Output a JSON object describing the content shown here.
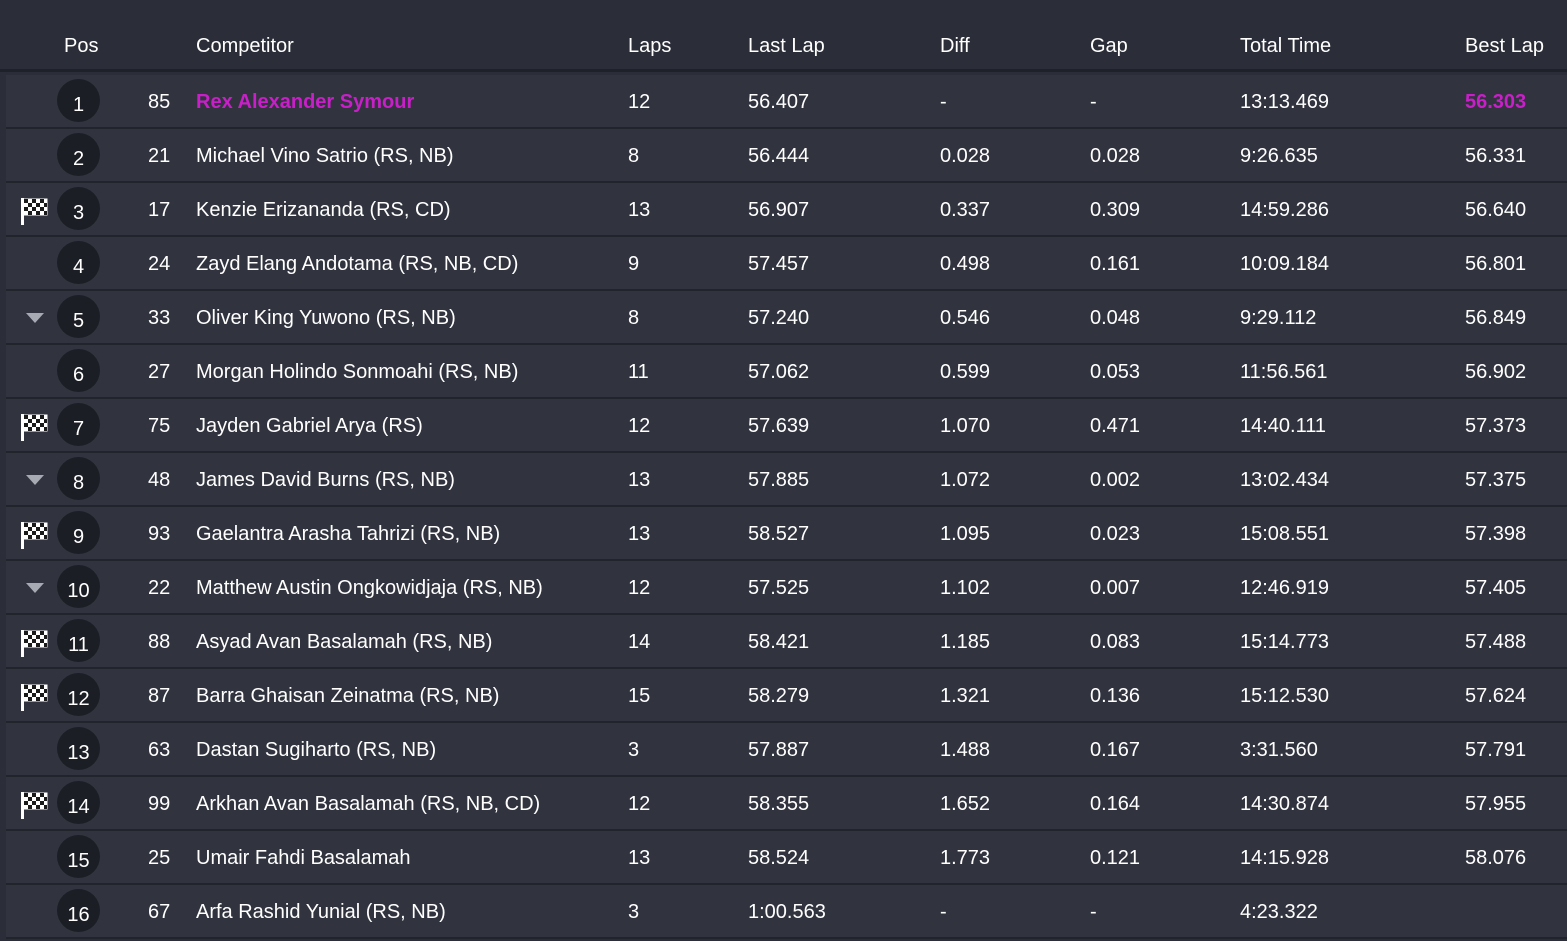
{
  "colors": {
    "background": "#2b2e38",
    "row": "#31343f",
    "highlight": "#c81fc8",
    "badge": "#1c1e25"
  },
  "header": {
    "pos": "Pos",
    "competitor": "Competitor",
    "laps": "Laps",
    "last_lap": "Last Lap",
    "diff": "Diff",
    "gap": "Gap",
    "total_time": "Total Time",
    "best_lap": "Best Lap"
  },
  "rows": [
    {
      "pos": "1",
      "num": "85",
      "name": "Rex Alexander Symour",
      "laps": "12",
      "last": "56.407",
      "diff": "-",
      "gap": "-",
      "total": "13:13.469",
      "best": "56.303",
      "marker": "",
      "highlight": true
    },
    {
      "pos": "2",
      "num": "21",
      "name": "Michael Vino Satrio (RS, NB)",
      "laps": "8",
      "last": "56.444",
      "diff": "0.028",
      "gap": "0.028",
      "total": "9:26.635",
      "best": "56.331",
      "marker": "",
      "highlight": false
    },
    {
      "pos": "3",
      "num": "17",
      "name": "Kenzie Erizananda (RS, CD)",
      "laps": "13",
      "last": "56.907",
      "diff": "0.337",
      "gap": "0.309",
      "total": "14:59.286",
      "best": "56.640",
      "marker": "checkered-flag-icon",
      "highlight": false
    },
    {
      "pos": "4",
      "num": "24",
      "name": "Zayd Elang Andotama (RS, NB, CD)",
      "laps": "9",
      "last": "57.457",
      "diff": "0.498",
      "gap": "0.161",
      "total": "10:09.184",
      "best": "56.801",
      "marker": "",
      "highlight": false
    },
    {
      "pos": "5",
      "num": "33",
      "name": "Oliver King Yuwono (RS, NB)",
      "laps": "8",
      "last": "57.240",
      "diff": "0.546",
      "gap": "0.048",
      "total": "9:29.112",
      "best": "56.849",
      "marker": "position-down-icon",
      "highlight": false
    },
    {
      "pos": "6",
      "num": "27",
      "name": "Morgan Holindo Sonmoahi (RS, NB)",
      "laps": "11",
      "last": "57.062",
      "diff": "0.599",
      "gap": "0.053",
      "total": "11:56.561",
      "best": "56.902",
      "marker": "",
      "highlight": false
    },
    {
      "pos": "7",
      "num": "75",
      "name": "Jayden Gabriel Arya (RS)",
      "laps": "12",
      "last": "57.639",
      "diff": "1.070",
      "gap": "0.471",
      "total": "14:40.111",
      "best": "57.373",
      "marker": "checkered-flag-icon",
      "highlight": false
    },
    {
      "pos": "8",
      "num": "48",
      "name": "James David Burns (RS, NB)",
      "laps": "13",
      "last": "57.885",
      "diff": "1.072",
      "gap": "0.002",
      "total": "13:02.434",
      "best": "57.375",
      "marker": "position-down-icon",
      "highlight": false
    },
    {
      "pos": "9",
      "num": "93",
      "name": "Gaelantra Arasha Tahrizi (RS, NB)",
      "laps": "13",
      "last": "58.527",
      "diff": "1.095",
      "gap": "0.023",
      "total": "15:08.551",
      "best": "57.398",
      "marker": "checkered-flag-icon",
      "highlight": false
    },
    {
      "pos": "10",
      "num": "22",
      "name": "Matthew Austin Ongkowidjaja (RS, NB)",
      "laps": "12",
      "last": "57.525",
      "diff": "1.102",
      "gap": "0.007",
      "total": "12:46.919",
      "best": "57.405",
      "marker": "position-down-icon",
      "highlight": false
    },
    {
      "pos": "11",
      "num": "88",
      "name": "Asyad Avan Basalamah (RS, NB)",
      "laps": "14",
      "last": "58.421",
      "diff": "1.185",
      "gap": "0.083",
      "total": "15:14.773",
      "best": "57.488",
      "marker": "checkered-flag-icon",
      "highlight": false
    },
    {
      "pos": "12",
      "num": "87",
      "name": "Barra Ghaisan Zeinatma (RS, NB)",
      "laps": "15",
      "last": "58.279",
      "diff": "1.321",
      "gap": "0.136",
      "total": "15:12.530",
      "best": "57.624",
      "marker": "checkered-flag-icon",
      "highlight": false
    },
    {
      "pos": "13",
      "num": "63",
      "name": "Dastan Sugiharto (RS, NB)",
      "laps": "3",
      "last": "57.887",
      "diff": "1.488",
      "gap": "0.167",
      "total": "3:31.560",
      "best": "57.791",
      "marker": "",
      "highlight": false
    },
    {
      "pos": "14",
      "num": "99",
      "name": "Arkhan Avan Basalamah (RS, NB, CD)",
      "laps": "12",
      "last": "58.355",
      "diff": "1.652",
      "gap": "0.164",
      "total": "14:30.874",
      "best": "57.955",
      "marker": "checkered-flag-icon",
      "highlight": false
    },
    {
      "pos": "15",
      "num": "25",
      "name": "Umair Fahdi Basalamah",
      "laps": "13",
      "last": "58.524",
      "diff": "1.773",
      "gap": "0.121",
      "total": "14:15.928",
      "best": "58.076",
      "marker": "",
      "highlight": false
    },
    {
      "pos": "16",
      "num": "67",
      "name": "Arfa Rashid Yunial (RS, NB)",
      "laps": "3",
      "last": "1:00.563",
      "diff": "-",
      "gap": "-",
      "total": "4:23.322",
      "best": "",
      "marker": "",
      "highlight": false
    }
  ]
}
